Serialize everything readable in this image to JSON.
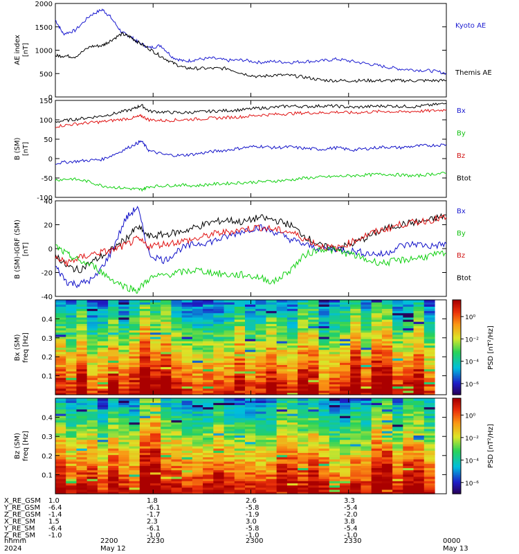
{
  "chart_data": [
    {
      "type": "line",
      "panel": "ae",
      "ylabel": "AE index",
      "yunit": "[nT]",
      "ylim": [
        0,
        2000
      ],
      "yticks": [
        0,
        500,
        1000,
        1500,
        2000
      ],
      "series": [
        {
          "name": "Kyoto AE",
          "color": "#1a1ad0",
          "t": [
            0,
            2,
            5,
            9,
            12,
            14,
            17,
            19,
            21,
            24,
            27,
            30,
            33,
            36,
            40,
            44,
            48,
            52,
            56,
            60,
            64,
            68,
            72,
            76,
            80,
            84,
            88,
            92,
            96,
            100
          ],
          "values": [
            1650,
            1350,
            1420,
            1750,
            1870,
            1720,
            1380,
            1300,
            1180,
            1050,
            1100,
            850,
            760,
            800,
            830,
            780,
            790,
            740,
            760,
            740,
            760,
            770,
            810,
            760,
            710,
            650,
            600,
            580,
            560,
            510
          ]
        },
        {
          "name": "Themis AE",
          "color": "#000000",
          "t": [
            0,
            2,
            5,
            9,
            12,
            14,
            17,
            19,
            21,
            24,
            27,
            30,
            33,
            36,
            40,
            44,
            48,
            52,
            56,
            60,
            64,
            68,
            72,
            76,
            80,
            84,
            88,
            92,
            96,
            100
          ],
          "values": [
            880,
            880,
            860,
            1080,
            1100,
            1200,
            1350,
            1290,
            1180,
            1030,
            870,
            730,
            620,
            610,
            610,
            610,
            500,
            430,
            470,
            460,
            420,
            360,
            350,
            350,
            350,
            350,
            350,
            350,
            350,
            350
          ]
        }
      ]
    },
    {
      "type": "line",
      "panel": "b_sm",
      "ylabel": "B (SM)",
      "yunit": "[nT]",
      "ylim": [
        -100,
        150
      ],
      "yticks": [
        -100,
        -50,
        0,
        50,
        100,
        150
      ],
      "series": [
        {
          "name": "Btot",
          "color": "#000000",
          "t": [
            0,
            4,
            8,
            12,
            16,
            20,
            22,
            24,
            28,
            32,
            36,
            40,
            44,
            48,
            52,
            56,
            60,
            64,
            68,
            72,
            76,
            80,
            84,
            88,
            92,
            96,
            100
          ],
          "values": [
            95,
            100,
            105,
            110,
            118,
            128,
            138,
            122,
            120,
            118,
            120,
            122,
            124,
            126,
            130,
            132,
            136,
            134,
            136,
            135,
            132,
            134,
            136,
            135,
            134,
            138,
            142
          ]
        },
        {
          "name": "Bx",
          "color": "#e01010",
          "t": [
            0,
            4,
            8,
            12,
            16,
            20,
            22,
            24,
            28,
            32,
            36,
            40,
            44,
            48,
            52,
            56,
            60,
            64,
            68,
            72,
            76,
            80,
            84,
            88,
            92,
            96,
            100
          ],
          "values": [
            83,
            88,
            92,
            95,
            100,
            105,
            110,
            100,
            98,
            100,
            102,
            104,
            106,
            108,
            112,
            114,
            116,
            118,
            118,
            120,
            118,
            120,
            122,
            120,
            122,
            123,
            126
          ]
        },
        {
          "name": "Bz",
          "color": "#1010c8",
          "t": [
            0,
            4,
            8,
            12,
            16,
            20,
            22,
            24,
            28,
            32,
            36,
            40,
            44,
            48,
            52,
            56,
            60,
            64,
            68,
            72,
            76,
            80,
            84,
            88,
            92,
            96,
            100
          ],
          "values": [
            -12,
            -8,
            -5,
            -2,
            15,
            35,
            45,
            20,
            10,
            8,
            12,
            18,
            22,
            28,
            32,
            28,
            30,
            26,
            24,
            28,
            22,
            26,
            30,
            28,
            32,
            34,
            36
          ]
        },
        {
          "name": "By",
          "color": "#10d010",
          "t": [
            0,
            4,
            8,
            12,
            16,
            20,
            22,
            24,
            28,
            32,
            36,
            40,
            44,
            48,
            52,
            56,
            60,
            64,
            68,
            72,
            76,
            80,
            84,
            88,
            92,
            96,
            100
          ],
          "values": [
            -55,
            -52,
            -58,
            -70,
            -75,
            -78,
            -80,
            -72,
            -70,
            -68,
            -70,
            -66,
            -64,
            -62,
            -60,
            -58,
            -55,
            -50,
            -48,
            -46,
            -44,
            -42,
            -40,
            -42,
            -45,
            -40,
            -38
          ]
        }
      ],
      "legend_labels": [
        "Bx",
        "By",
        "Bz",
        "Btot"
      ],
      "legend_colors": [
        "#1a1ad0",
        "#10c010",
        "#d01010",
        "#000000"
      ]
    },
    {
      "type": "line",
      "panel": "b_igrf",
      "ylabel": "B (SM)-IGRF (SM)",
      "yunit": "[nT]",
      "ylim": [
        -40,
        40
      ],
      "yticks": [
        -40,
        -20,
        0,
        20,
        40
      ],
      "series": [
        {
          "name": "Btot",
          "color": "#000000",
          "t": [
            0,
            3,
            6,
            10,
            14,
            18,
            21,
            24,
            28,
            32,
            36,
            40,
            44,
            48,
            52,
            56,
            60,
            64,
            68,
            72,
            76,
            80,
            84,
            88,
            92,
            96,
            100
          ],
          "values": [
            -5,
            -15,
            -18,
            -10,
            -2,
            8,
            18,
            10,
            12,
            14,
            18,
            22,
            24,
            22,
            26,
            24,
            20,
            10,
            2,
            0,
            4,
            10,
            16,
            20,
            22,
            24,
            28
          ]
        },
        {
          "name": "Bx",
          "color": "#1010c8",
          "t": [
            0,
            3,
            6,
            10,
            14,
            18,
            21,
            24,
            28,
            32,
            36,
            40,
            44,
            48,
            52,
            56,
            60,
            64,
            68,
            72,
            76,
            80,
            84,
            88,
            92,
            96,
            100
          ],
          "values": [
            -15,
            -28,
            -30,
            -25,
            -5,
            25,
            35,
            -5,
            -10,
            0,
            4,
            6,
            10,
            15,
            18,
            14,
            8,
            3,
            0,
            0,
            -2,
            -4,
            -5,
            2,
            4,
            2,
            4
          ]
        },
        {
          "name": "Bz",
          "color": "#e01010",
          "t": [
            0,
            3,
            6,
            10,
            14,
            18,
            21,
            24,
            28,
            32,
            36,
            40,
            44,
            48,
            52,
            56,
            60,
            64,
            68,
            72,
            76,
            80,
            84,
            88,
            92,
            96,
            100
          ],
          "values": [
            -8,
            -12,
            -8,
            -4,
            -2,
            3,
            8,
            2,
            4,
            6,
            8,
            12,
            14,
            16,
            18,
            16,
            14,
            8,
            2,
            0,
            6,
            12,
            16,
            20,
            22,
            24,
            26
          ]
        },
        {
          "name": "By",
          "color": "#10d010",
          "t": [
            0,
            3,
            6,
            10,
            14,
            18,
            21,
            24,
            28,
            32,
            36,
            40,
            44,
            48,
            52,
            56,
            60,
            64,
            68,
            72,
            76,
            80,
            84,
            88,
            92,
            96,
            100
          ],
          "values": [
            2,
            -5,
            -10,
            -15,
            -25,
            -32,
            -35,
            -25,
            -22,
            -20,
            -18,
            -20,
            -22,
            -22,
            -24,
            -28,
            -18,
            -5,
            0,
            -2,
            -5,
            -10,
            -12,
            -10,
            -8,
            -6,
            -4
          ]
        }
      ],
      "legend_labels": [
        "Bx",
        "By",
        "Bz",
        "Btot"
      ],
      "legend_colors": [
        "#1a1ad0",
        "#10c010",
        "#d01010",
        "#000000"
      ]
    },
    {
      "type": "heatmap",
      "panel": "bx_psd",
      "ylabel": "Bx (SM)",
      "ylabel2": "freq [Hz]",
      "ylim": [
        0,
        0.5
      ],
      "yticks": [
        0.1,
        0.2,
        0.3,
        0.4
      ],
      "ytick_labels": [
        "0.1",
        "0.2",
        "0.3",
        "0.4"
      ],
      "colorbar_label": "PSD [nT²/Hz]",
      "colorbar_ticks": [
        "10⁰",
        "10⁻²",
        "10⁻⁴",
        "10⁻⁶"
      ],
      "colorbar_range_log10": [
        -7,
        1.5
      ]
    },
    {
      "type": "heatmap",
      "panel": "bz_psd",
      "ylabel": "Bz (SM)",
      "ylabel2": "freq [Hz]",
      "ylim": [
        0,
        0.5
      ],
      "yticks": [
        0.1,
        0.2,
        0.3,
        0.4
      ],
      "ytick_labels": [
        "0.1",
        "0.2",
        "0.3",
        "0.4"
      ],
      "colorbar_label": "PSD [nT²/Hz]",
      "colorbar_ticks": [
        "10⁰",
        "10⁻²",
        "10⁻⁴",
        "10⁻⁶"
      ],
      "colorbar_range_log10": [
        -7,
        1.5
      ]
    }
  ],
  "ae_legend": {
    "kyoto": "Kyoto AE",
    "themis": "Themis AE"
  },
  "orbit_table": {
    "rows": [
      {
        "label": "X_RE_GSM",
        "values": [
          "1.0",
          "1.8",
          "2.6",
          "3.3"
        ]
      },
      {
        "label": "Y_RE_GSM",
        "values": [
          "-6.4",
          "-6.1",
          "-5.8",
          "-5.4"
        ]
      },
      {
        "label": "Z_RE_GSM",
        "values": [
          "-1.4",
          "-1.7",
          "-1.9",
          "-2.0"
        ]
      },
      {
        "label": "X_RE_SM",
        "values": [
          "1.5",
          "2.3",
          "3.0",
          "3.8"
        ]
      },
      {
        "label": "Y_RE_SM",
        "values": [
          "-6.4",
          "-6.1",
          "-5.8",
          "-5.4"
        ]
      },
      {
        "label": "Z_RE_SM",
        "values": [
          "-1.0",
          "-1.0",
          "-1.0",
          "-1.0"
        ]
      }
    ],
    "time_label": "hhmm",
    "year_label": "2024",
    "time_ticks": [
      "2200",
      "2230",
      "2300",
      "2330",
      "0000"
    ],
    "date_start": "May 12",
    "date_end": "May 13"
  }
}
